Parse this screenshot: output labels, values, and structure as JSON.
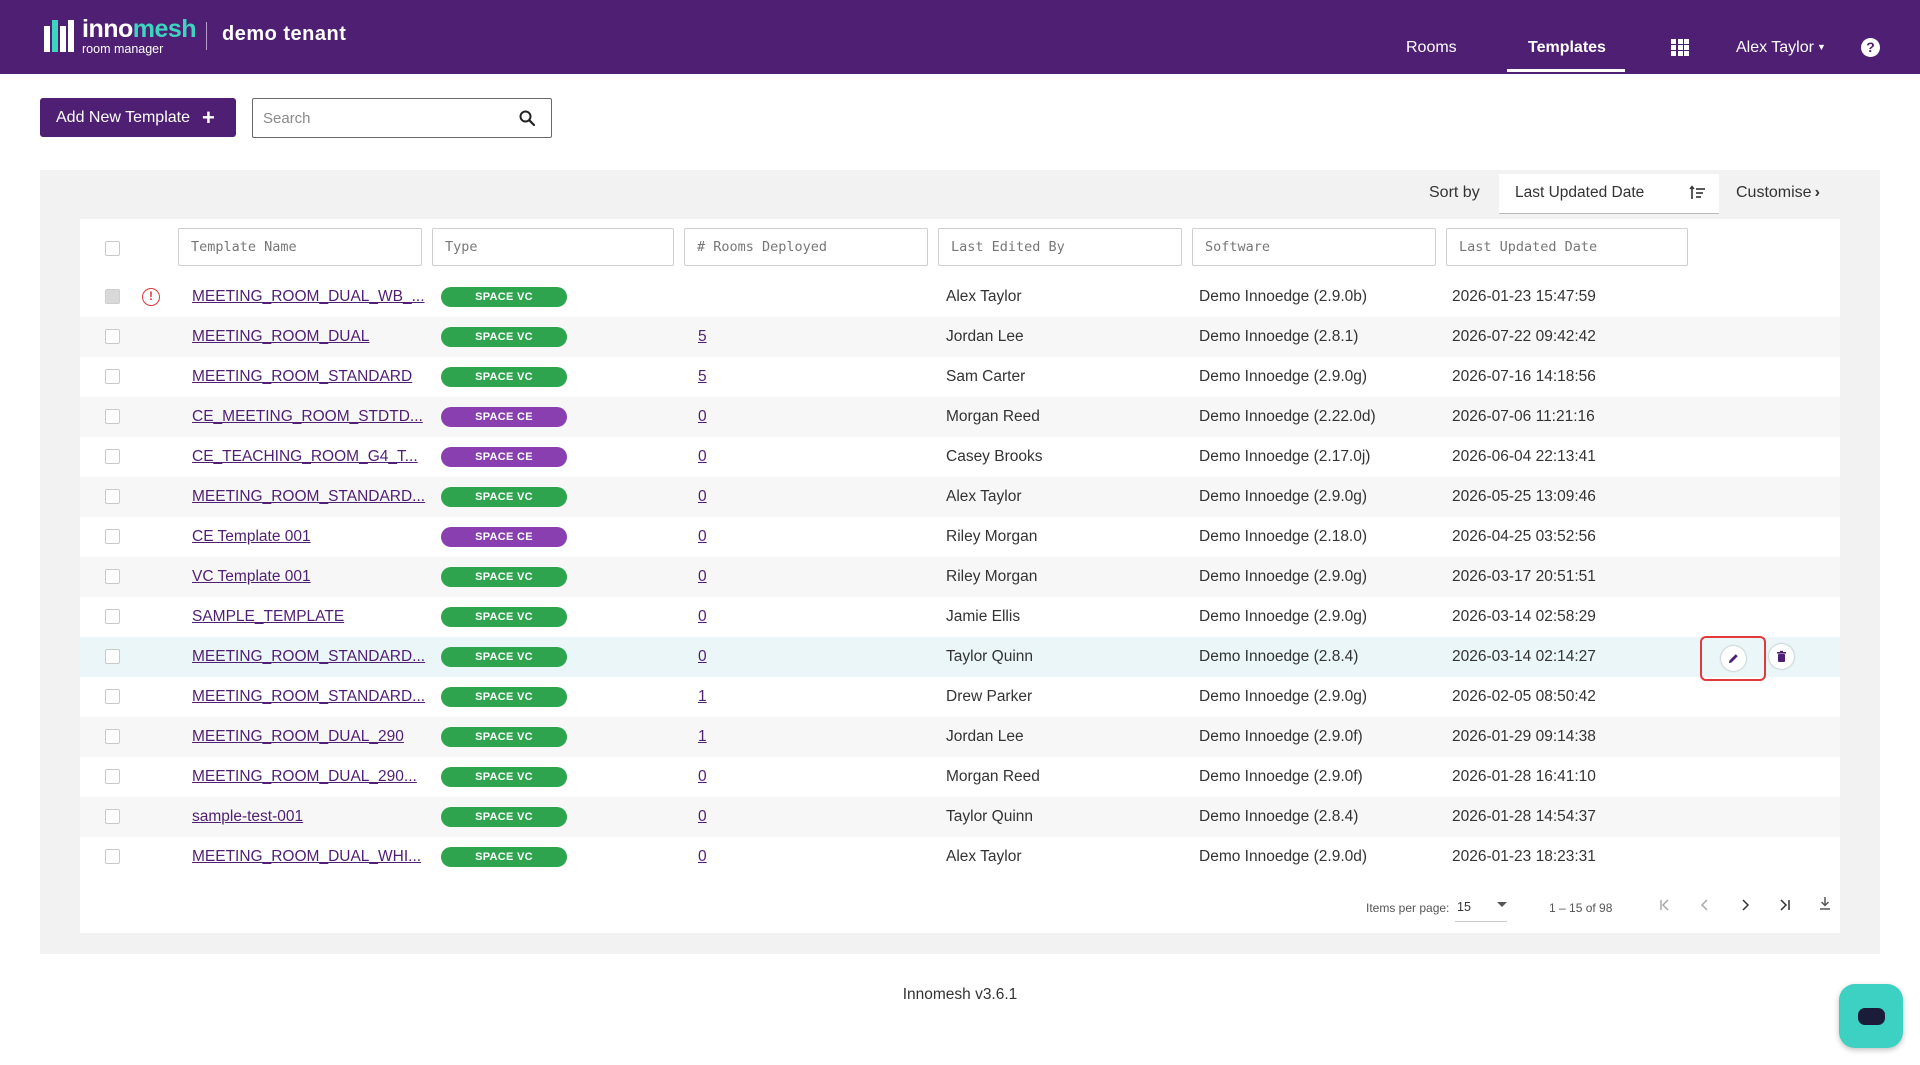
{
  "header": {
    "logo_brand_inno": "inno",
    "logo_brand_mesh": "mesh",
    "logo_sub": "room manager",
    "tenant": "demo tenant",
    "nav": {
      "rooms": "Rooms",
      "templates": "Templates"
    },
    "user": "Alex Taylor",
    "help": "?"
  },
  "toolbar": {
    "add_label": "Add New Template",
    "add_plus": "+",
    "search_placeholder": "Search"
  },
  "sort": {
    "label": "Sort by",
    "value": "Last Updated Date",
    "customise": "Customise",
    "customise_chev": "›"
  },
  "columns": {
    "name": "Template Name",
    "type": "Type",
    "rooms": "# Rooms Deployed",
    "editor": "Last Edited By",
    "software": "Software",
    "updated": "Last Updated Date"
  },
  "rows": [
    {
      "name": "MEETING_ROOM_DUAL_WB_...",
      "type": "SPACE VC",
      "rooms": "",
      "editor": "Alex Taylor",
      "software": "Demo Innoedge (2.9.0b)",
      "updated": "2026-01-23 15:47:59"
    },
    {
      "name": "MEETING_ROOM_DUAL",
      "type": "SPACE VC",
      "rooms": "5",
      "editor": "Jordan Lee",
      "software": "Demo Innoedge (2.8.1)",
      "updated": "2026-07-22 09:42:42"
    },
    {
      "name": "MEETING_ROOM_STANDARD",
      "type": "SPACE VC",
      "rooms": "5",
      "editor": "Sam Carter",
      "software": "Demo Innoedge (2.9.0g)",
      "updated": "2026-07-16 14:18:56"
    },
    {
      "name": "CE_MEETING_ROOM_STDTD...",
      "type": "SPACE CE",
      "rooms": "0",
      "editor": "Morgan Reed",
      "software": "Demo Innoedge (2.22.0d)",
      "updated": "2026-07-06 11:21:16"
    },
    {
      "name": "CE_TEACHING_ROOM_G4_T...",
      "type": "SPACE CE",
      "rooms": "0",
      "editor": "Casey Brooks",
      "software": "Demo Innoedge (2.17.0j)",
      "updated": "2026-06-04 22:13:41"
    },
    {
      "name": "MEETING_ROOM_STANDARD...",
      "type": "SPACE VC",
      "rooms": "0",
      "editor": "Alex Taylor",
      "software": "Demo Innoedge (2.9.0g)",
      "updated": "2026-05-25 13:09:46"
    },
    {
      "name": "CE Template 001",
      "type": "SPACE CE",
      "rooms": "0",
      "editor": "Riley Morgan",
      "software": "Demo Innoedge (2.18.0)",
      "updated": "2026-04-25 03:52:56"
    },
    {
      "name": "VC Template 001",
      "type": "SPACE VC",
      "rooms": "0",
      "editor": "Riley Morgan",
      "software": "Demo Innoedge (2.9.0g)",
      "updated": "2026-03-17 20:51:51"
    },
    {
      "name": "SAMPLE_TEMPLATE",
      "type": "SPACE VC",
      "rooms": "0",
      "editor": "Jamie Ellis",
      "software": "Demo Innoedge (2.9.0g)",
      "updated": "2026-03-14 02:58:29"
    },
    {
      "name": "MEETING_ROOM_STANDARD...",
      "type": "SPACE VC",
      "rooms": "0",
      "editor": "Taylor Quinn",
      "software": "Demo Innoedge (2.8.4)",
      "updated": "2026-03-14 02:14:27"
    },
    {
      "name": "MEETING_ROOM_STANDARD...",
      "type": "SPACE VC",
      "rooms": "1",
      "editor": "Drew Parker",
      "software": "Demo Innoedge (2.9.0g)",
      "updated": "2026-02-05 08:50:42"
    },
    {
      "name": "MEETING_ROOM_DUAL_290",
      "type": "SPACE VC",
      "rooms": "1",
      "editor": "Jordan Lee",
      "software": "Demo Innoedge (2.9.0f)",
      "updated": "2026-01-29 09:14:38"
    },
    {
      "name": "MEETING_ROOM_DUAL_290...",
      "type": "SPACE VC",
      "rooms": "0",
      "editor": "Morgan Reed",
      "software": "Demo Innoedge (2.9.0f)",
      "updated": "2026-01-28 16:41:10"
    },
    {
      "name": "sample-test-001",
      "type": "SPACE VC",
      "rooms": "0",
      "editor": "Taylor Quinn",
      "software": "Demo Innoedge (2.8.4)",
      "updated": "2026-01-28 14:54:37"
    },
    {
      "name": "MEETING_ROOM_DUAL_WHI...",
      "type": "SPACE VC",
      "rooms": "0",
      "editor": "Alex Taylor",
      "software": "Demo Innoedge (2.9.0d)",
      "updated": "2026-01-23 18:23:31"
    }
  ],
  "row_icons": {
    "warning": "!"
  },
  "paginator": {
    "items_per_page_label": "Items per page:",
    "items_per_page_value": "15",
    "range": "1 – 15 of 98"
  },
  "footer": {
    "version": "Innomesh v3.6.1"
  },
  "icons": {
    "search": "search-icon",
    "sort": "sort-descending-icon",
    "apps": "grid-apps-icon",
    "help": "help-icon",
    "edit": "pencil-icon",
    "delete": "trash-icon",
    "first": "first-page-icon",
    "prev": "chevron-left-icon",
    "next": "chevron-right-icon",
    "last": "last-page-icon",
    "download": "download-icon",
    "chat": "chat-icon"
  },
  "colors": {
    "brand": "#4f1f73",
    "accent": "#3ed5c0",
    "badge_vc": "#2ea44f",
    "badge_ce": "#8a3fb0",
    "highlight": "#e03a3a"
  }
}
